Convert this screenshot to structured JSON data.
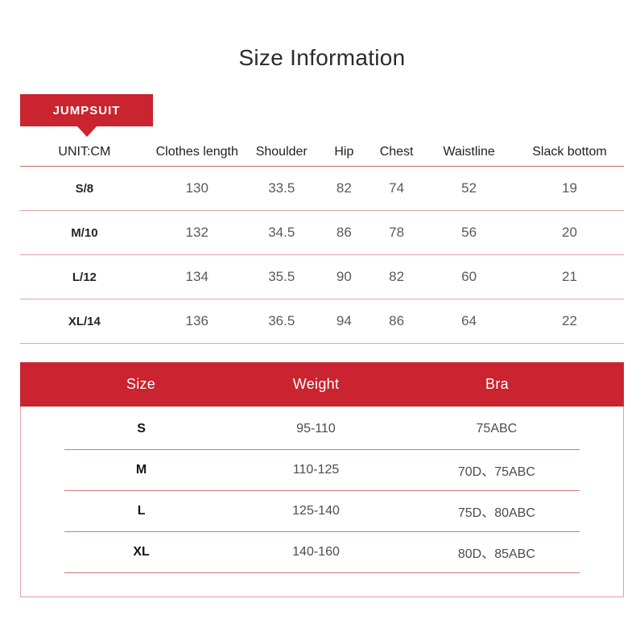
{
  "page": {
    "title": "Size Information"
  },
  "badge": {
    "label": "JUMPSUIT"
  },
  "colors": {
    "accent_red": "#c9242f",
    "header_line_red": "#ce6060",
    "row_line_pink": "#e0a1a1"
  },
  "size_table": {
    "unit_label": "UNIT:CM",
    "columns": [
      "Clothes length",
      "Shoulder",
      "Hip",
      "Chest",
      "Waistline",
      "Slack bottom"
    ],
    "rows": [
      {
        "size": "S/8",
        "values": [
          "130",
          "33.5",
          "82",
          "74",
          "52",
          "19"
        ]
      },
      {
        "size": "M/10",
        "values": [
          "132",
          "34.5",
          "86",
          "78",
          "56",
          "20"
        ]
      },
      {
        "size": "L/12",
        "values": [
          "134",
          "35.5",
          "90",
          "82",
          "60",
          "21"
        ]
      },
      {
        "size": "XL/14",
        "values": [
          "136",
          "36.5",
          "94",
          "86",
          "64",
          "22"
        ]
      }
    ]
  },
  "weight_table": {
    "columns": [
      "Size",
      "Weight",
      "Bra"
    ],
    "rows": [
      {
        "size": "S",
        "weight": "95-110",
        "bra": "75ABC"
      },
      {
        "size": "M",
        "weight": "110-125",
        "bra": "70D、75ABC"
      },
      {
        "size": "L",
        "weight": "125-140",
        "bra": "75D、80ABC"
      },
      {
        "size": "XL",
        "weight": "140-160",
        "bra": "80D、85ABC"
      }
    ]
  }
}
